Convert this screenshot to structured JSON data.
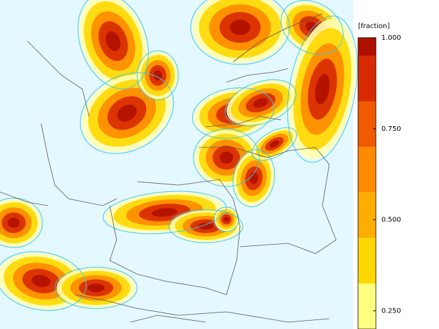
{
  "colorbar": {
    "label": "[fraction]",
    "lim": [
      0.2,
      1.0
    ],
    "ticks": [
      {
        "value": 1.0,
        "label": "1.000"
      },
      {
        "value": 0.75,
        "label": "0.750"
      },
      {
        "value": 0.5,
        "label": "0.500"
      },
      {
        "value": 0.25,
        "label": "0.250"
      }
    ],
    "levels": [
      0.2,
      0.325,
      0.45,
      0.575,
      0.7,
      0.825,
      0.95,
      1.0
    ],
    "colors": [
      "#ffff80",
      "#ffd800",
      "#ffae00",
      "#ff8a00",
      "#f05a00",
      "#d82a00",
      "#b01000"
    ]
  }
}
